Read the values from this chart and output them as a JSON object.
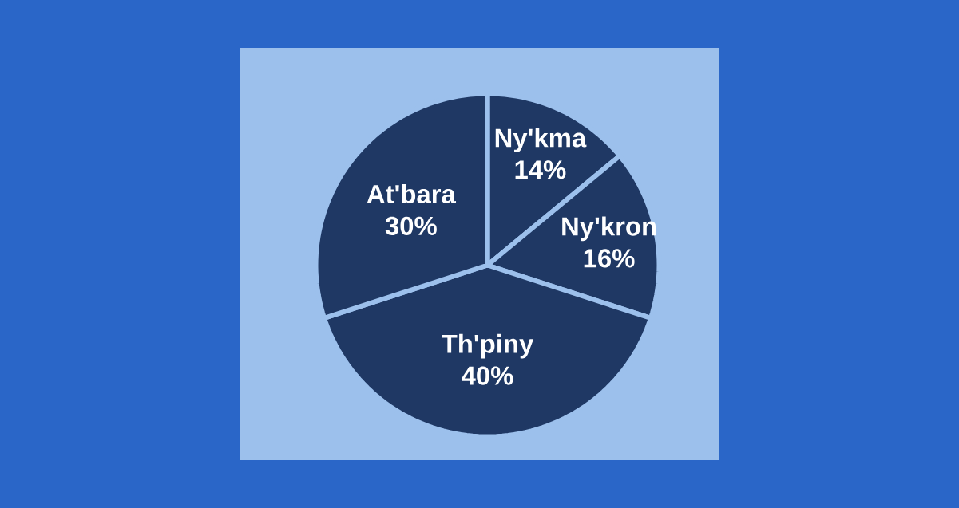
{
  "chart_data": {
    "type": "pie",
    "categories": [
      "Ny'kma",
      "Ny'kron",
      "Th'piny",
      "At'bara"
    ],
    "values": [
      14,
      16,
      40,
      30
    ],
    "value_labels": [
      "14%",
      "16%",
      "40%",
      "30%"
    ],
    "colors": [
      "#1f3864",
      "#1f3864",
      "#1f3864",
      "#1f3864"
    ]
  }
}
